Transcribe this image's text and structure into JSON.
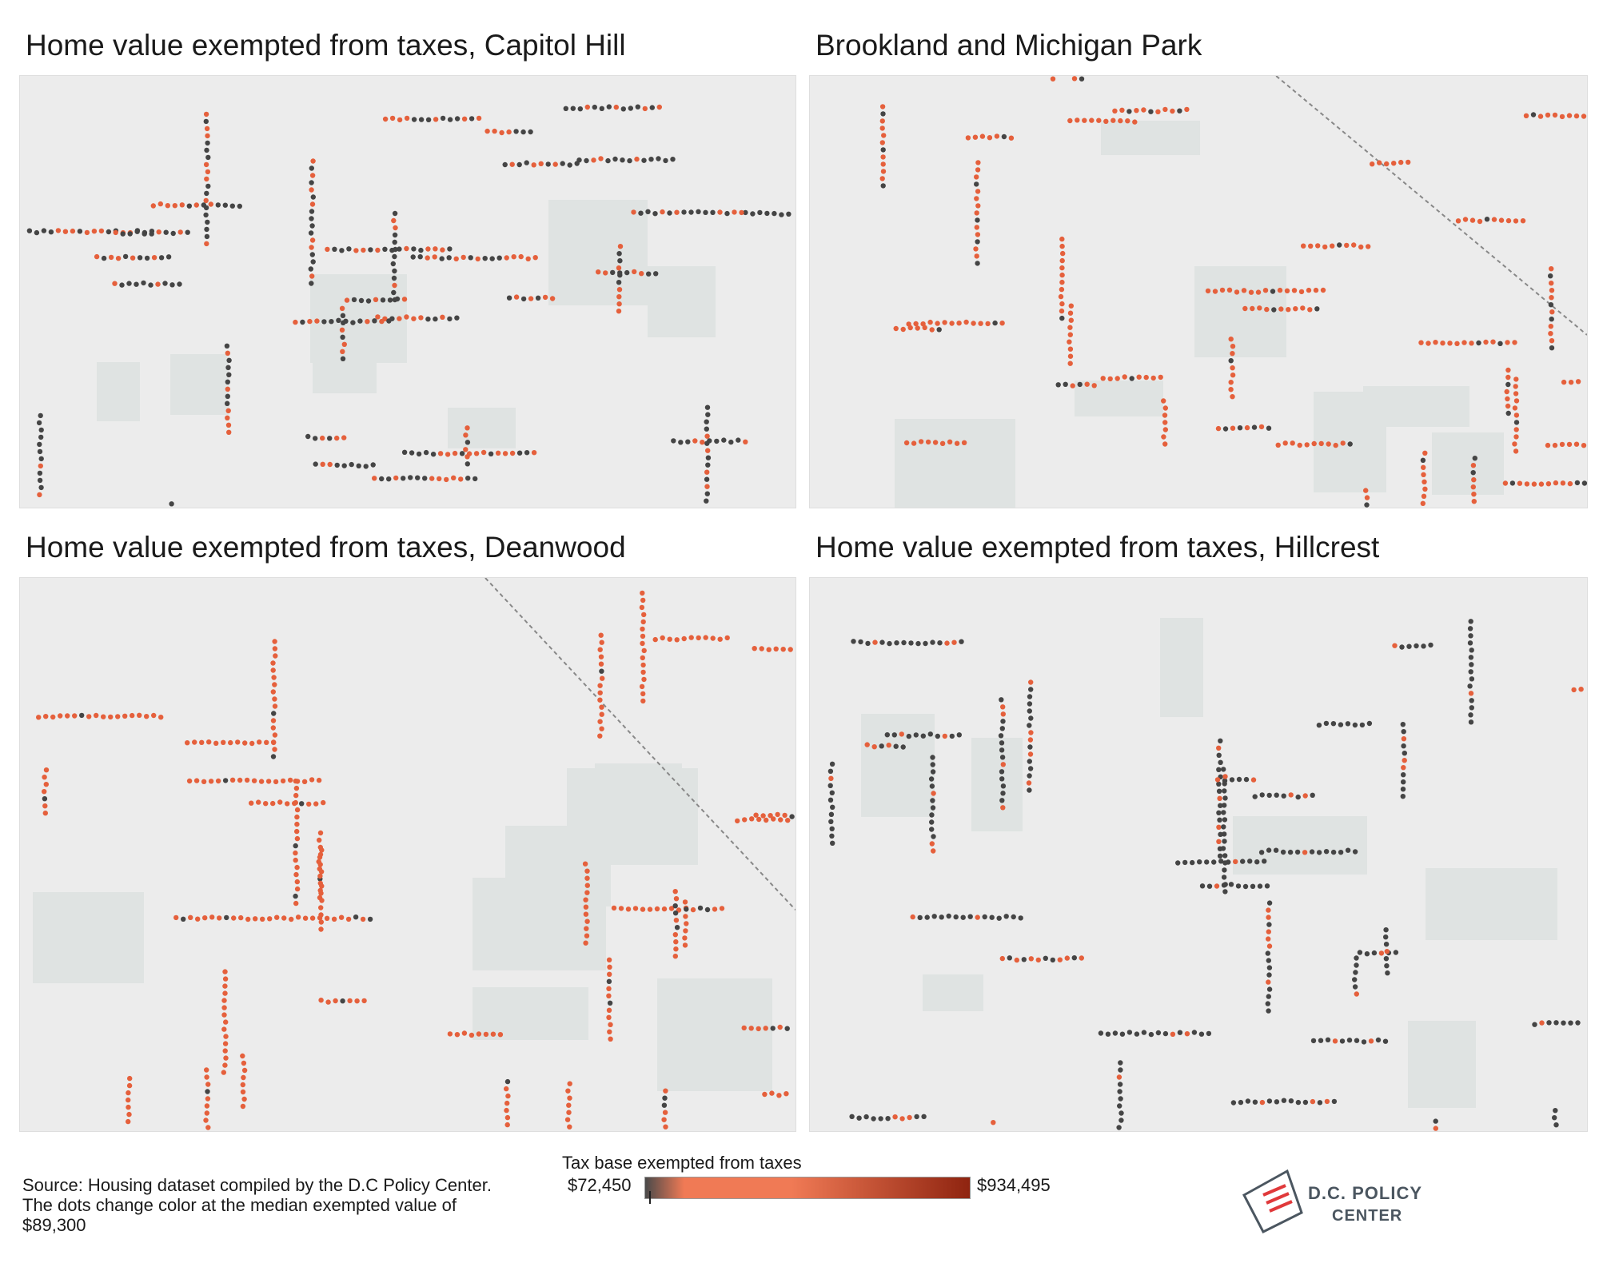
{
  "panels": [
    {
      "title": "Home value exempted from taxes, Capitol Hill",
      "ratio": 0.6,
      "seed": 11
    },
    {
      "title": "Brookland and Michigan Park",
      "ratio": 0.15,
      "seed": 23
    },
    {
      "title": "Home value exempted from taxes, Deanwood",
      "ratio": 0.08,
      "seed": 37
    },
    {
      "title": "Home value exempted from taxes, Hillcrest",
      "ratio": 0.78,
      "seed": 51
    }
  ],
  "source": {
    "line1": "Source: Housing dataset compiled by the D.C Policy Center.",
    "line2": "The dots change color at the median exempted value of",
    "line3": "$89,300"
  },
  "legend": {
    "title": "Tax base exempted from taxes",
    "min_label": "$72,450",
    "max_label": "$934,495"
  },
  "logo": {
    "line1": "D.C. POLICY",
    "line2": "CENTER"
  },
  "colors": {
    "map_bg": "#ececec",
    "park": "#dfe3e2",
    "high_dot": "#e5603c",
    "low_dot": "#454545",
    "gradient_start": "#4a4a4a",
    "gradient_mid": "#f07a55",
    "gradient_end": "#8f2410",
    "logo_red": "#e0393b",
    "logo_gray": "#4b5660"
  }
}
